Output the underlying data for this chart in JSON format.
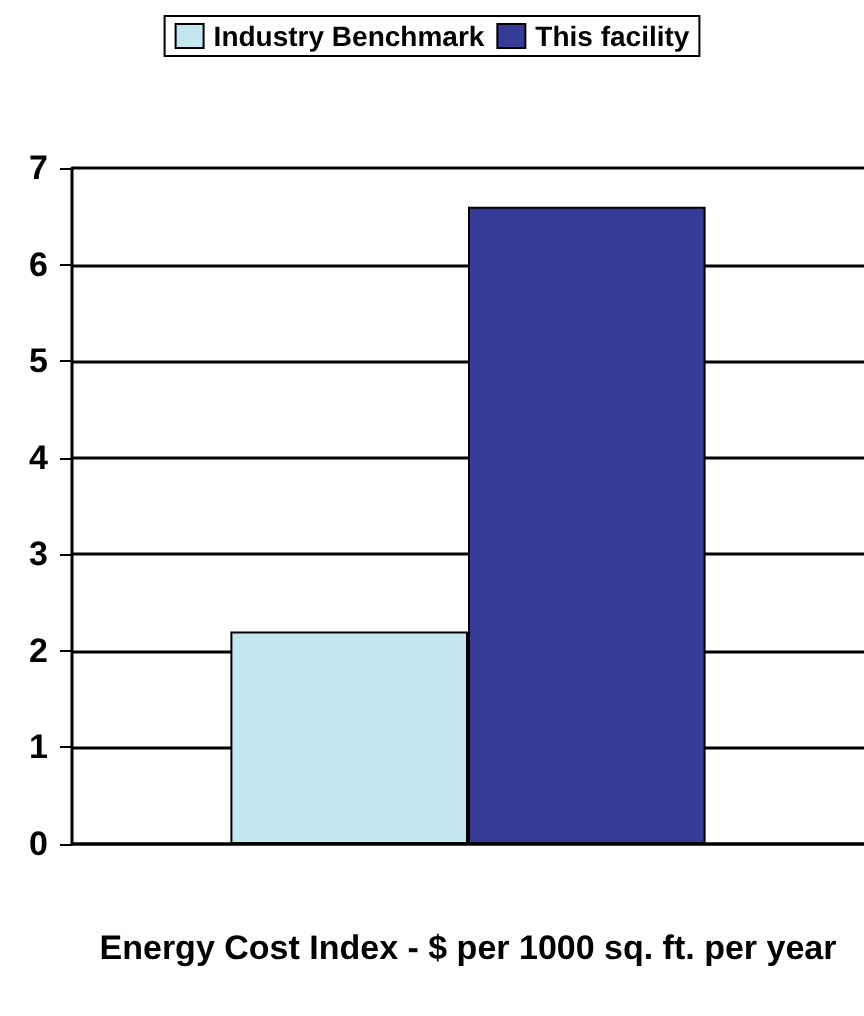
{
  "chart_data": {
    "type": "bar",
    "categories": [
      null
    ],
    "xlabel": "Energy Cost Index - $ per 1000 sq. ft. per year",
    "series": [
      {
        "name": "Industry Benchmark",
        "color": "#c4e6ee",
        "values": [
          2.2
        ]
      },
      {
        "name": "This facility",
        "color": "#343c98",
        "values": [
          6.6
        ]
      }
    ],
    "ylim": [
      0,
      7
    ],
    "yticks": [
      0,
      1,
      2,
      3,
      4,
      5,
      6,
      7
    ],
    "grid": "y",
    "legend": "top"
  }
}
